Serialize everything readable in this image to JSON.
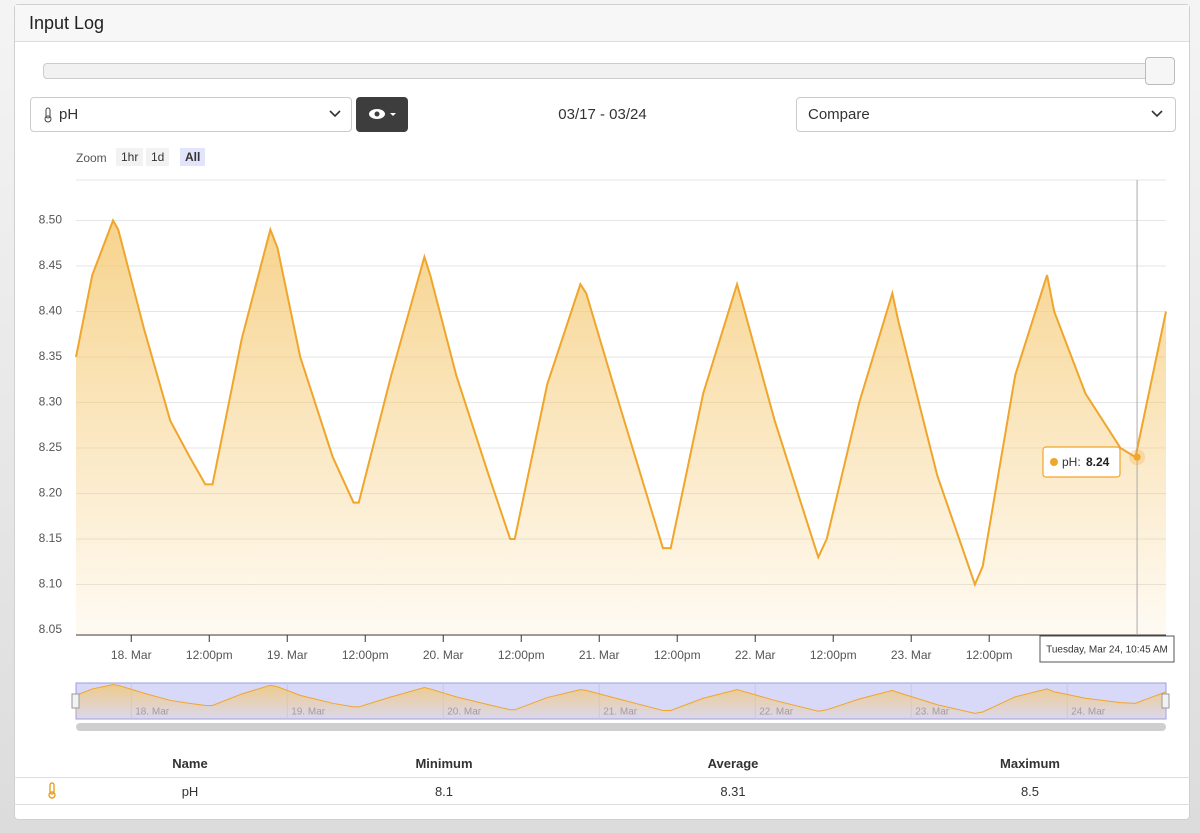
{
  "header": {
    "title": "Input Log"
  },
  "controls": {
    "input_select": "pH",
    "date_range": "03/17 - 03/24",
    "compare": "Compare",
    "zoom_label": "Zoom",
    "zoom_buttons": [
      "1hr",
      "1d",
      "All"
    ],
    "zoom_active": 2
  },
  "chart_data": {
    "type": "area",
    "x": [
      15.5,
      18,
      21.2,
      22,
      26,
      30,
      33,
      35.4,
      36.5,
      41,
      45.4,
      46.5,
      50,
      55,
      58.2,
      59,
      64,
      69.1,
      70,
      74,
      79,
      82.3,
      83,
      88,
      93.1,
      94,
      99,
      105.8,
      107,
      112,
      117.2,
      118,
      123,
      129.7,
      131,
      136,
      141.1,
      142,
      148,
      153.8,
      155,
      160,
      164.9,
      166,
      170.8,
      176.2,
      178.5,
      183.2
    ],
    "series": [
      {
        "color": "#f0a52b",
        "values": [
          8.35,
          8.44,
          8.5,
          8.49,
          8.38,
          8.28,
          8.24,
          8.21,
          8.21,
          8.37,
          8.49,
          8.47,
          8.35,
          8.24,
          8.19,
          8.19,
          8.33,
          8.46,
          8.44,
          8.33,
          8.22,
          8.15,
          8.15,
          8.32,
          8.43,
          8.42,
          8.3,
          8.14,
          8.14,
          8.31,
          8.43,
          8.41,
          8.28,
          8.13,
          8.15,
          8.3,
          8.42,
          8.39,
          8.22,
          8.1,
          8.12,
          8.33,
          8.44,
          8.4,
          8.31,
          8.25,
          8.24,
          8.4
        ]
      }
    ],
    "xlim": [
      15.5,
      183.2
    ],
    "ylim": [
      8.05,
      8.55
    ],
    "xticks": [
      {
        "value": 24,
        "label": "18. Mar"
      },
      {
        "value": 36,
        "label": "12:00pm"
      },
      {
        "value": 48,
        "label": "19. Mar"
      },
      {
        "value": 60,
        "label": "12:00pm"
      },
      {
        "value": 72,
        "label": "20. Mar"
      },
      {
        "value": 84,
        "label": "12:00pm"
      },
      {
        "value": 96,
        "label": "21. Mar"
      },
      {
        "value": 108,
        "label": "12:00pm"
      },
      {
        "value": 120,
        "label": "22. Mar"
      },
      {
        "value": 132,
        "label": "12:00pm"
      },
      {
        "value": 144,
        "label": "23. Mar"
      },
      {
        "value": 156,
        "label": "12:00pm"
      }
    ],
    "yticks": [
      {
        "value": 8.05,
        "label": "8.05"
      },
      {
        "value": 8.1,
        "label": "8.10"
      },
      {
        "value": 8.15,
        "label": "8.15"
      },
      {
        "value": 8.2,
        "label": "8.20"
      },
      {
        "value": 8.25,
        "label": "8.25"
      },
      {
        "value": 8.3,
        "label": "8.30"
      },
      {
        "value": 8.35,
        "label": "8.35"
      },
      {
        "value": 8.4,
        "label": "8.40"
      },
      {
        "value": 8.45,
        "label": "8.45"
      },
      {
        "value": 8.5,
        "label": "8.50"
      }
    ],
    "grid": true,
    "tooltip": {
      "label": "pH:",
      "value": 8.24,
      "x": 178.75,
      "time": "Tuesday, Mar 24, 10:45 AM"
    },
    "navigator": {
      "xticks": [
        {
          "value": 24,
          "label": "18. Mar"
        },
        {
          "value": 48,
          "label": "19. Mar"
        },
        {
          "value": 72,
          "label": "20. Mar"
        },
        {
          "value": 96,
          "label": "21. Mar"
        },
        {
          "value": 120,
          "label": "22. Mar"
        },
        {
          "value": 144,
          "label": "23. Mar"
        },
        {
          "value": 168,
          "label": "24. Mar"
        }
      ]
    }
  },
  "stats_table": {
    "columns": [
      "Name",
      "Minimum",
      "Average",
      "Maximum"
    ],
    "rows": [
      [
        "pH",
        8.1,
        8.31,
        8.5
      ]
    ]
  }
}
